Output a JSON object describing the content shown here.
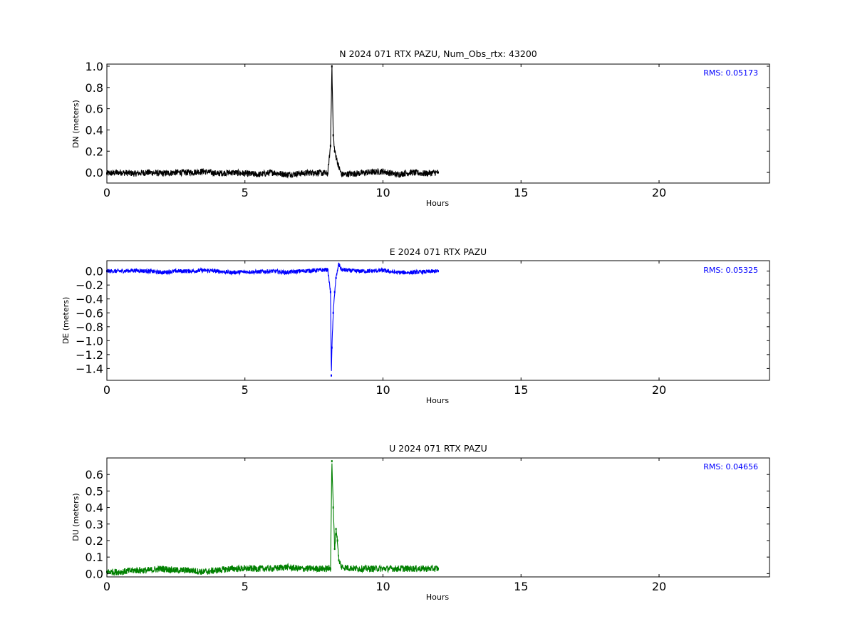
{
  "chart_data": [
    {
      "type": "scatter",
      "component": "N",
      "title": "N 2024 071 RTX  PAZU, Num_Obs_rtx: 43200",
      "xlabel": "Hours",
      "ylabel": "DN (meters)",
      "xlim": [
        0,
        24
      ],
      "ylim": [
        -0.1,
        1.02
      ],
      "xticks": [
        0,
        5,
        10,
        15,
        20
      ],
      "yticks": [
        0.0,
        0.2,
        0.4,
        0.6,
        0.8,
        1.0
      ],
      "ytick_labels": [
        "0.0",
        "0.2",
        "0.4",
        "0.6",
        "0.8",
        "1.0"
      ],
      "rms_label": "RMS:  0.05173",
      "rms_color": "#0000ff",
      "color": "#000000",
      "grid": false,
      "series": [
        {
          "x": [
            0.0,
            0.5,
            1.0,
            1.5,
            2.0,
            2.5,
            3.0,
            3.5,
            4.0,
            4.5,
            5.0,
            5.5,
            6.0,
            6.5,
            7.0,
            7.5,
            8.0,
            8.1,
            8.15,
            8.2,
            8.25,
            8.3,
            8.4,
            8.5,
            9.0,
            9.5,
            10.0,
            10.5,
            11.0,
            11.5,
            12.0
          ],
          "y": [
            -0.01,
            0.0,
            -0.01,
            0.0,
            -0.01,
            0.0,
            0.0,
            0.01,
            -0.01,
            0.0,
            -0.01,
            -0.02,
            0.0,
            -0.02,
            -0.01,
            0.0,
            -0.01,
            0.25,
            1.0,
            0.35,
            0.2,
            0.15,
            0.05,
            -0.02,
            -0.01,
            0.0,
            0.01,
            -0.02,
            0.0,
            -0.01,
            0.0
          ],
          "spread": 0.03
        }
      ]
    },
    {
      "type": "scatter",
      "component": "E",
      "title": "E 2024 071 RTX  PAZU",
      "xlabel": "Hours",
      "ylabel": "DE (meters)",
      "xlim": [
        0,
        24
      ],
      "ylim": [
        -1.57,
        0.15
      ],
      "xticks": [
        0,
        5,
        10,
        15,
        20
      ],
      "yticks": [
        0.0,
        -0.2,
        -0.4,
        -0.6,
        -0.8,
        -1.0,
        -1.2,
        -1.4
      ],
      "ytick_labels": [
        "0.0",
        "−0.2",
        "−0.4",
        "−0.6",
        "−0.8",
        "−1.0",
        "−1.2",
        "−1.4"
      ],
      "rms_label": "RMS:  0.05325",
      "rms_color": "#0000ff",
      "color": "#0000ff",
      "grid": false,
      "series": [
        {
          "x": [
            0.0,
            0.5,
            1.0,
            1.5,
            2.0,
            2.5,
            3.0,
            3.5,
            4.0,
            4.5,
            5.0,
            5.5,
            6.0,
            6.5,
            7.0,
            7.5,
            8.0,
            8.1,
            8.13,
            8.15,
            8.2,
            8.25,
            8.3,
            8.4,
            8.5,
            9.0,
            9.5,
            10.0,
            10.5,
            11.0,
            11.5,
            12.0
          ],
          "y": [
            0.0,
            0.0,
            0.01,
            0.0,
            -0.02,
            0.0,
            0.0,
            0.01,
            0.0,
            -0.02,
            -0.01,
            -0.01,
            0.0,
            -0.02,
            0.0,
            0.01,
            0.02,
            -0.3,
            -1.5,
            -1.1,
            -0.6,
            -0.3,
            -0.1,
            0.1,
            0.02,
            0.0,
            0.0,
            0.01,
            -0.02,
            -0.02,
            -0.01,
            0.0
          ],
          "spread": 0.03
        }
      ]
    },
    {
      "type": "scatter",
      "component": "U",
      "title": "U 2024 071 RTX  PAZU",
      "xlabel": "Hours",
      "ylabel": "DU (meters)",
      "xlim": [
        0,
        24
      ],
      "ylim": [
        -0.02,
        0.7
      ],
      "xticks": [
        0,
        5,
        10,
        15,
        20
      ],
      "yticks": [
        0.0,
        0.1,
        0.2,
        0.3,
        0.4,
        0.5,
        0.6
      ],
      "ytick_labels": [
        "0.0",
        "0.1",
        "0.2",
        "0.3",
        "0.4",
        "0.5",
        "0.6"
      ],
      "rms_label": "RMS:  0.04656",
      "rms_color": "#0000ff",
      "color": "#008000",
      "grid": false,
      "series": [
        {
          "x": [
            0.0,
            0.5,
            1.0,
            1.5,
            2.0,
            2.5,
            3.0,
            3.5,
            4.0,
            4.5,
            5.0,
            5.5,
            6.0,
            6.5,
            7.0,
            7.5,
            8.0,
            8.1,
            8.15,
            8.2,
            8.25,
            8.3,
            8.35,
            8.4,
            8.5,
            9.0,
            9.5,
            10.0,
            10.5,
            11.0,
            11.5,
            12.0
          ],
          "y": [
            0.01,
            0.01,
            0.02,
            0.02,
            0.03,
            0.02,
            0.02,
            0.01,
            0.02,
            0.03,
            0.03,
            0.03,
            0.03,
            0.04,
            0.03,
            0.03,
            0.03,
            0.03,
            0.68,
            0.4,
            0.15,
            0.27,
            0.2,
            0.08,
            0.04,
            0.03,
            0.03,
            0.03,
            0.03,
            0.03,
            0.03,
            0.03
          ],
          "spread": 0.02
        }
      ]
    }
  ]
}
